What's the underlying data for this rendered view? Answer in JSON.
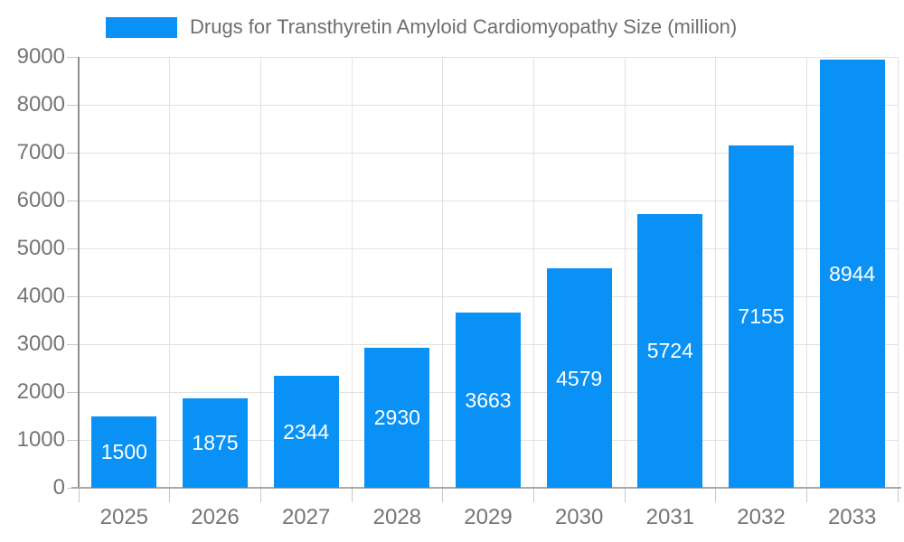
{
  "chart_data": {
    "type": "bar",
    "title": "Drugs for Transthyretin Amyloid Cardiomyopathy Size (million)",
    "categories": [
      "2025",
      "2026",
      "2027",
      "2028",
      "2029",
      "2030",
      "2031",
      "2032",
      "2033"
    ],
    "values": [
      1500,
      1875,
      2344,
      2930,
      3663,
      4579,
      5724,
      7155,
      8944
    ],
    "series": [
      {
        "name": "Drugs for Transthyretin Amyloid Cardiomyopathy Size (million)",
        "values": [
          1500,
          1875,
          2344,
          2930,
          3663,
          4579,
          5724,
          7155,
          8944
        ]
      }
    ],
    "xlabel": "",
    "ylabel": "",
    "ylim": [
      0,
      9000
    ],
    "ytick_interval": 1000,
    "ytick_labels": [
      "0",
      "1000",
      "2000",
      "3000",
      "4000",
      "5000",
      "6000",
      "7000",
      "8000",
      "9000"
    ],
    "grid": true,
    "value_labels_shown": true,
    "legend_position": "top-left",
    "colors": {
      "bar": "#0a91f5",
      "value_label": "#ffffff",
      "tick_label": "#757575",
      "title": "#6e6e6e",
      "gridline": "#e2e2e2",
      "axis_line_y": "#8f8f8f",
      "axis_line_x": "#a9a9a9",
      "tick_stub": "#c7c7c7"
    }
  }
}
